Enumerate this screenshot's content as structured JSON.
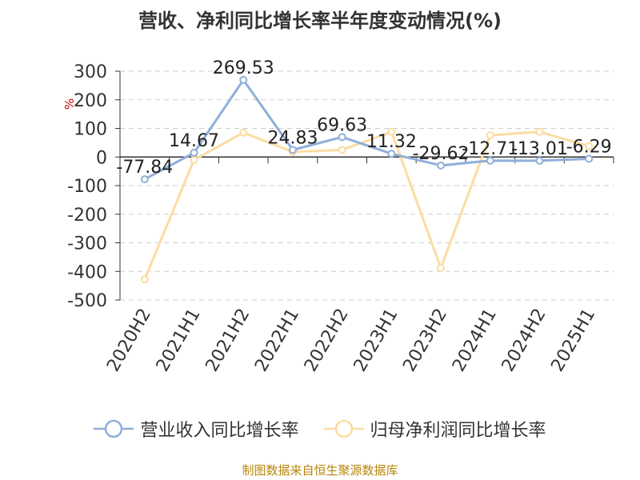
{
  "title": "营收、净利同比增长率半年度变动情况(%)",
  "source": "制图数据来自恒生聚源数据库",
  "chart_data": {
    "type": "line",
    "ylabel": "%",
    "ylim": [
      -500,
      300
    ],
    "yticks": [
      300,
      200,
      100,
      0,
      -100,
      -200,
      -300,
      -400,
      -500
    ],
    "grid": true,
    "legend_position": "bottom",
    "categories": [
      "2020H2",
      "2021H1",
      "2021H2",
      "2022H1",
      "2022H2",
      "2023H1",
      "2023H2",
      "2024H1",
      "2024H2",
      "2025H1"
    ],
    "series": [
      {
        "name": "营业收入同比增长率",
        "color": "#8fafd9",
        "values": [
          -77.84,
          14.67,
          269.53,
          24.83,
          69.63,
          11.32,
          -29.62,
          -12.71,
          -13.01,
          -6.29
        ],
        "labels": [
          "-77.84",
          "14.67",
          "269.53",
          "24.83",
          "69.63",
          "11.32",
          "-29.62",
          "-12.71",
          "-13.01",
          "-6.29"
        ]
      },
      {
        "name": "归母净利润同比增长率",
        "color": "#fbdca3",
        "values": [
          -428,
          -10,
          85,
          18,
          25,
          88,
          -388,
          76,
          88,
          38
        ]
      }
    ]
  }
}
